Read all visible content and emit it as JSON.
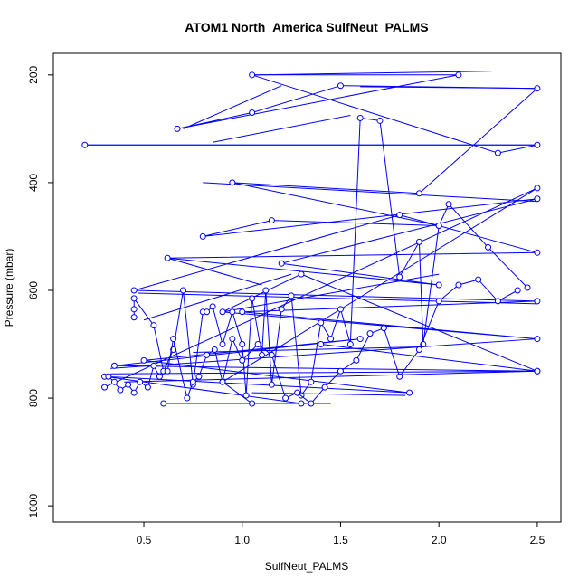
{
  "chart_data": {
    "type": "scatter",
    "title": "ATOM1 North_America SulfNeut_PALMS",
    "xlabel": "SulfNeut_PALMS",
    "ylabel": "Pressure (mbar)",
    "xlim": [
      0.04,
      2.62
    ],
    "ylim": [
      1030,
      160
    ],
    "y_reversed": true,
    "x_ticks": [
      0.5,
      1.0,
      1.5,
      2.0,
      2.5
    ],
    "x_tick_labels": [
      "0.5",
      "1.0",
      "1.5",
      "2.0",
      "2.5"
    ],
    "y_ticks": [
      200,
      400,
      600,
      800,
      1000
    ],
    "y_tick_labels": [
      "200",
      "400",
      "600",
      "800",
      "1000"
    ],
    "series_style": {
      "color": "#0000ff",
      "marker": "open-circle",
      "line": "connected"
    },
    "grid": false,
    "series": [
      {
        "x": [
          0.2,
          2.5,
          2.3,
          1.05,
          2.1,
          0.67,
          1.05,
          1.5,
          2.5,
          1.9,
          0.95,
          2.0,
          1.15,
          0.8,
          2.5,
          1.2,
          2.0,
          0.62,
          2.5,
          1.8,
          0.45,
          2.5,
          1.0,
          2.5,
          0.9,
          1.3,
          2.5,
          1.4,
          2.5,
          0.35,
          1.6,
          0.5,
          1.85,
          0.3,
          1.3,
          0.6,
          1.05,
          0.9,
          2.5,
          0.3
        ],
        "y": [
          330,
          330,
          345,
          200,
          200,
          300,
          270,
          220,
          225,
          420,
          400,
          480,
          470,
          500,
          430,
          550,
          590,
          540,
          530,
          460,
          600,
          620,
          640,
          690,
          640,
          570,
          750,
          700,
          750,
          740,
          690,
          730,
          790,
          760,
          810,
          810,
          810,
          770,
          410,
          780
        ]
      },
      {
        "x": [
          0.45,
          0.45,
          0.45,
          0.55,
          0.6,
          0.65,
          0.7,
          0.75,
          0.8,
          0.82,
          0.85,
          0.9,
          0.95,
          1.0,
          1.02,
          1.05,
          1.1,
          1.12,
          1.15,
          1.2,
          1.25,
          1.3,
          1.35,
          1.4,
          1.45,
          1.5,
          1.55,
          1.6,
          1.7,
          1.8,
          1.9,
          1.92,
          2.0,
          2.05,
          2.25,
          2.45
        ],
        "y": [
          650,
          635,
          615,
          665,
          750,
          710,
          600,
          775,
          640,
          640,
          630,
          700,
          640,
          700,
          795,
          615,
          720,
          600,
          775,
          635,
          610,
          795,
          770,
          660,
          690,
          635,
          700,
          280,
          285,
          575,
          510,
          700,
          480,
          440,
          520,
          595
        ]
      },
      {
        "x": [
          0.32,
          0.35,
          0.38,
          0.42,
          0.45,
          0.48,
          0.52,
          0.55,
          0.58,
          0.62,
          0.65,
          0.72,
          0.75,
          0.78,
          0.82,
          0.86,
          0.9,
          0.95,
          1.0,
          1.08,
          1.15,
          1.22,
          1.28,
          1.35,
          1.42,
          1.5,
          1.58,
          1.65,
          1.72,
          1.8,
          1.9,
          2.0,
          2.1,
          2.2,
          2.3,
          2.4
        ],
        "y": [
          760,
          770,
          785,
          775,
          790,
          770,
          780,
          740,
          760,
          750,
          690,
          800,
          770,
          760,
          720,
          710,
          770,
          690,
          730,
          700,
          720,
          800,
          790,
          810,
          780,
          750,
          730,
          680,
          670,
          760,
          710,
          620,
          590,
          580,
          620,
          600
        ]
      }
    ],
    "segments": [
      [
        [
          0.2,
          330
        ],
        [
          2.5,
          330
        ]
      ],
      [
        [
          0.33,
          755
        ],
        [
          2.5,
          750
        ]
      ],
      [
        [
          0.33,
          745
        ],
        [
          2.5,
          690
        ]
      ],
      [
        [
          0.47,
          605
        ],
        [
          2.5,
          625
        ]
      ],
      [
        [
          1.05,
          200
        ],
        [
          2.27,
          193
        ]
      ],
      [
        [
          1.6,
          222
        ],
        [
          2.5,
          225
        ]
      ],
      [
        [
          0.62,
          540
        ],
        [
          1.1,
          590
        ]
      ],
      [
        [
          0.75,
          810
        ],
        [
          1.45,
          810
        ]
      ],
      [
        [
          1.05,
          790
        ],
        [
          1.83,
          795
        ]
      ],
      [
        [
          0.4,
          770
        ],
        [
          2.5,
          750
        ]
      ],
      [
        [
          0.5,
          655
        ],
        [
          1.25,
          570
        ]
      ],
      [
        [
          0.7,
          300
        ],
        [
          1.2,
          220
        ]
      ],
      [
        [
          0.85,
          325
        ],
        [
          1.55,
          275
        ]
      ],
      [
        [
          0.8,
          400
        ],
        [
          2.5,
          435
        ]
      ],
      [
        [
          0.75,
          715
        ],
        [
          1.9,
          705
        ]
      ],
      [
        [
          0.9,
          640
        ],
        [
          2.0,
          570
        ]
      ]
    ]
  }
}
